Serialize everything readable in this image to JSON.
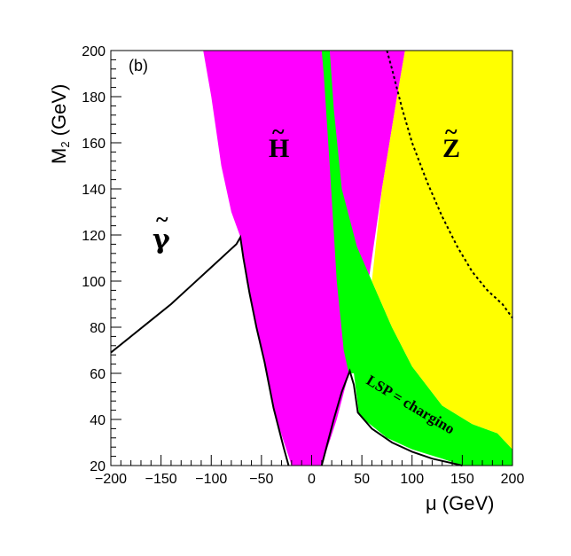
{
  "chart_data": {
    "type": "area",
    "panel_label": "(b)",
    "xlabel": "μ (GeV)",
    "ylabel_main": "M",
    "ylabel_sub": "2",
    "ylabel_rest": " (GeV)",
    "xlim": [
      -200,
      200
    ],
    "ylim": [
      20,
      200
    ],
    "x_ticks": [
      -200,
      -150,
      -100,
      -50,
      0,
      50,
      100,
      150,
      200
    ],
    "y_ticks": [
      20,
      40,
      60,
      80,
      100,
      120,
      140,
      160,
      180,
      200
    ],
    "colors": {
      "higgsino_region": "#ff00ff",
      "chargino_lsp_region": "#00ff00",
      "zino_region": "#ffff00",
      "boundary_line": "#000000"
    },
    "regions": [
      {
        "label": "H",
        "color": "#ff00ff",
        "polygon": [
          [
            -108,
            200
          ],
          [
            -100,
            180
          ],
          [
            -90,
            150
          ],
          [
            -80,
            130
          ],
          [
            -70,
            118
          ],
          [
            -65,
            100
          ],
          [
            -55,
            80
          ],
          [
            -45,
            60
          ],
          [
            -35,
            40
          ],
          [
            -20,
            20
          ],
          [
            10,
            20
          ],
          [
            25,
            40
          ],
          [
            37,
            60
          ],
          [
            45,
            75
          ],
          [
            55,
            95
          ],
          [
            70,
            140
          ],
          [
            85,
            180
          ],
          [
            93,
            200
          ]
        ]
      },
      {
        "label": "LSP = chargino",
        "color": "#00ff00",
        "polygon": [
          [
            10,
            200
          ],
          [
            18,
            200
          ],
          [
            22,
            175
          ],
          [
            30,
            140
          ],
          [
            45,
            115
          ],
          [
            60,
            100
          ],
          [
            80,
            80
          ],
          [
            100,
            63
          ],
          [
            130,
            46
          ],
          [
            160,
            38
          ],
          [
            185,
            34
          ],
          [
            200,
            27
          ],
          [
            200,
            20
          ],
          [
            150,
            20
          ],
          [
            130,
            23
          ],
          [
            100,
            27
          ],
          [
            75,
            32
          ],
          [
            55,
            39
          ],
          [
            47,
            43
          ],
          [
            42,
            60
          ],
          [
            37,
            60
          ],
          [
            32,
            70
          ],
          [
            25,
            100
          ],
          [
            18,
            150
          ],
          [
            12,
            190
          ]
        ]
      },
      {
        "label": "Z",
        "color": "#ffff00",
        "polygon": [
          [
            93,
            200
          ],
          [
            200,
            200
          ],
          [
            200,
            27
          ],
          [
            185,
            34
          ],
          [
            160,
            38
          ],
          [
            130,
            46
          ],
          [
            100,
            63
          ],
          [
            80,
            80
          ],
          [
            60,
            100
          ],
          [
            70,
            140
          ],
          [
            85,
            180
          ]
        ]
      }
    ],
    "boundary_curve": [
      [
        -200,
        69
      ],
      [
        -180,
        76
      ],
      [
        -160,
        83
      ],
      [
        -140,
        90
      ],
      [
        -120,
        98
      ],
      [
        -100,
        106
      ],
      [
        -85,
        112
      ],
      [
        -75,
        116
      ],
      [
        -71,
        119
      ],
      [
        -68,
        110
      ],
      [
        -62,
        95
      ],
      [
        -55,
        80
      ],
      [
        -47,
        65
      ],
      [
        -38,
        45
      ],
      [
        -28,
        28
      ],
      [
        -23,
        20
      ]
    ],
    "boundary_curve_right": [
      [
        10,
        20
      ],
      [
        22,
        40
      ],
      [
        30,
        52
      ],
      [
        38,
        61
      ],
      [
        42,
        55
      ],
      [
        46,
        43
      ],
      [
        60,
        36
      ],
      [
        80,
        30
      ],
      [
        100,
        26
      ],
      [
        120,
        23
      ],
      [
        140,
        21
      ],
      [
        150,
        20
      ]
    ],
    "dotted_curve": [
      [
        75,
        200
      ],
      [
        80,
        192
      ],
      [
        90,
        175
      ],
      [
        100,
        160
      ],
      [
        115,
        143
      ],
      [
        130,
        128
      ],
      [
        145,
        115
      ],
      [
        160,
        104
      ],
      [
        175,
        96
      ],
      [
        190,
        90
      ],
      [
        200,
        84
      ]
    ],
    "labels": {
      "photino": "γ",
      "higgsino": "H",
      "zino": "Z",
      "tilde": "~",
      "lsp": "LSP = chargino"
    }
  }
}
